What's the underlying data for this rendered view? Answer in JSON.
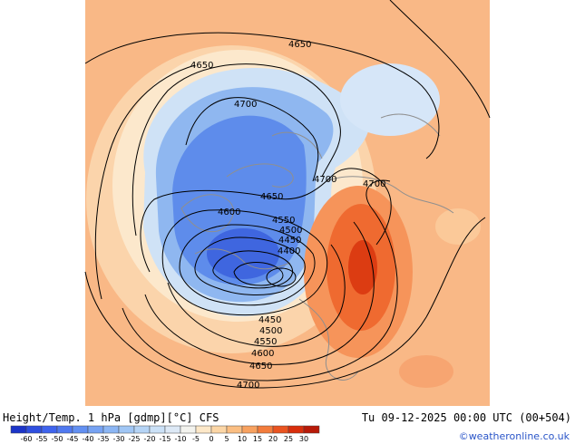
{
  "footer": {
    "title": "Height/Temp. 1 hPa [gdmp][°C] CFS",
    "datetime": "Tu 09-12-2025 00:00 UTC (00+504)",
    "credit": "©weatheronline.co.uk"
  },
  "contour_labels": [
    {
      "id": "c4650a",
      "text": "4650"
    },
    {
      "id": "c4650b",
      "text": "4650"
    },
    {
      "id": "c4700a",
      "text": "4700"
    },
    {
      "id": "c4700b",
      "text": "4700"
    },
    {
      "id": "c4700c",
      "text": "4700"
    },
    {
      "id": "c4650c",
      "text": "4650"
    },
    {
      "id": "c4600a",
      "text": "4600"
    },
    {
      "id": "c4550a",
      "text": "4550"
    },
    {
      "id": "c4500a",
      "text": "4500"
    },
    {
      "id": "c4450a",
      "text": "4450"
    },
    {
      "id": "c4400a",
      "text": "4400"
    },
    {
      "id": "c4450b",
      "text": "4450"
    },
    {
      "id": "c4500b",
      "text": "4500"
    },
    {
      "id": "c4550b",
      "text": "4550"
    },
    {
      "id": "c4600b",
      "text": "4600"
    },
    {
      "id": "c4650d",
      "text": "4650"
    },
    {
      "id": "c4700d",
      "text": "4700"
    }
  ],
  "colorbar": {
    "ticks": [
      "-60",
      "-55",
      "-50",
      "-45",
      "-40",
      "-35",
      "-30",
      "-25",
      "-20",
      "-15",
      "-10",
      "-5",
      "0",
      "5",
      "10",
      "15",
      "20",
      "25",
      "30"
    ],
    "colors": [
      "#1c34c8",
      "#2f4fe0",
      "#3f64ee",
      "#5079f0",
      "#6390f2",
      "#77a3f3",
      "#8cb6f4",
      "#a0c6f5",
      "#b5d4f6",
      "#cbe1f7",
      "#dde9f6",
      "#f3f3ee",
      "#fde8c8",
      "#fcd6a6",
      "#fbbe82",
      "#f8a260",
      "#f37c3c",
      "#ea5420",
      "#d92e0c",
      "#b81a08"
    ]
  }
}
